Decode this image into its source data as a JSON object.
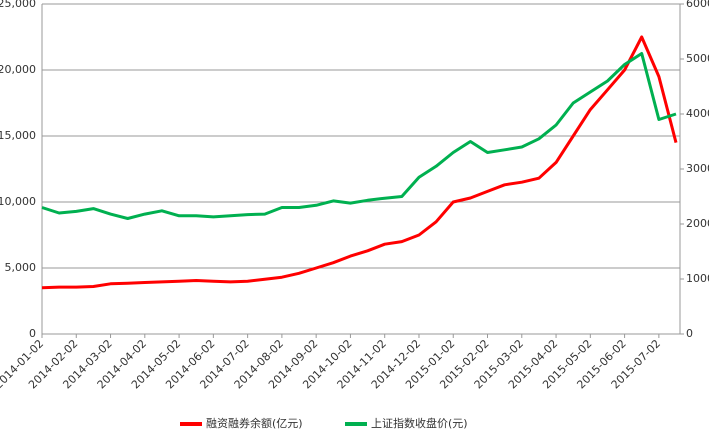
{
  "chart_data": {
    "type": "line",
    "categories": [
      "2014-01-02",
      null,
      "2014-02-02",
      null,
      "2014-03-02",
      null,
      "2014-04-02",
      null,
      "2014-05-02",
      null,
      "2014-06-02",
      null,
      "2014-07-02",
      null,
      "2014-08-02",
      null,
      "2014-09-02",
      null,
      "2014-10-02",
      null,
      "2014-11-02",
      null,
      "2014-12-02",
      null,
      "2015-01-02",
      null,
      "2015-02-02",
      null,
      "2015-03-02",
      null,
      "2015-04-02",
      null,
      "2015-05-02",
      null,
      "2015-06-02",
      null,
      "2015-07-02",
      null
    ],
    "series": [
      {
        "name": "融资融券余额(亿元)",
        "color": "#ff0000",
        "values": [
          3500,
          3550,
          3550,
          3600,
          3800,
          3850,
          3900,
          3950,
          4000,
          4050,
          4000,
          3950,
          4000,
          4150,
          4300,
          4600,
          5000,
          5400,
          5900,
          6300,
          6800,
          7000,
          7500,
          8500,
          10000,
          10300,
          10800,
          11300,
          11500,
          11800,
          13000,
          15000,
          17000,
          18500,
          20000,
          22500,
          19500,
          14500
        ]
      },
      {
        "name": "上证指数收盘价(元)",
        "color": "#00b050",
        "axis": "y2",
        "values": [
          2300,
          2200,
          2230,
          2280,
          2180,
          2100,
          2180,
          2240,
          2150,
          2150,
          2130,
          2150,
          2170,
          2180,
          2300,
          2300,
          2340,
          2420,
          2380,
          2430,
          2470,
          2500,
          2850,
          3050,
          3300,
          3500,
          3300,
          3350,
          3400,
          3550,
          3800,
          4200,
          4400,
          4600,
          4900,
          5100,
          3900,
          4000
        ]
      }
    ],
    "ylim": [
      0,
      25000
    ],
    "yticks": [
      0,
      {
        "value": 5000,
        "label": "5,000"
      },
      {
        "value": 10000,
        "label": "10,000"
      },
      {
        "value": 15000,
        "label": "15,000"
      },
      {
        "value": 20000,
        "label": "20,000"
      },
      {
        "value": 25000,
        "label": "25,000"
      }
    ],
    "y2lim": [
      0,
      6000
    ],
    "y2ticks": [
      0,
      1000,
      2000,
      3000,
      4000,
      5000,
      6000
    ],
    "grid": true
  }
}
